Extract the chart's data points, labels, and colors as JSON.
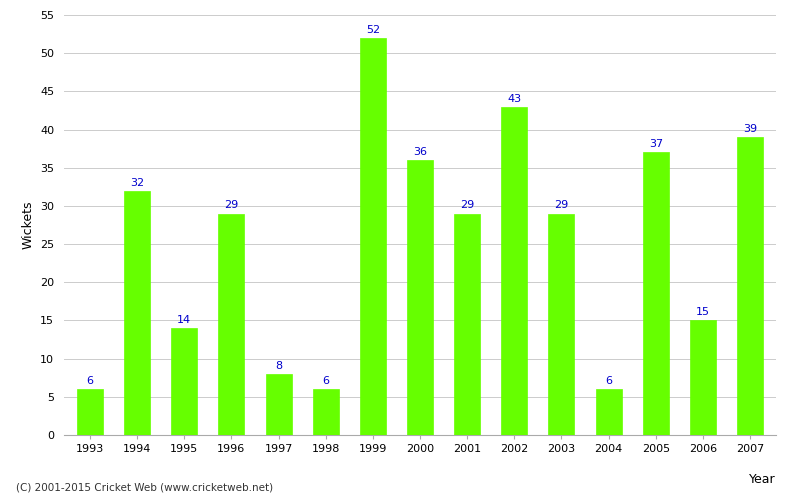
{
  "years": [
    1993,
    1994,
    1995,
    1996,
    1997,
    1998,
    1999,
    2000,
    2001,
    2002,
    2003,
    2004,
    2005,
    2006,
    2007
  ],
  "wickets": [
    6,
    32,
    14,
    29,
    8,
    6,
    52,
    36,
    29,
    43,
    29,
    6,
    37,
    15,
    39
  ],
  "bar_color": "#66ff00",
  "label_color": "#0000cc",
  "background_color": "#ffffff",
  "xlabel": "Year",
  "ylabel": "Wickets",
  "ylim": [
    0,
    55
  ],
  "yticks": [
    0,
    5,
    10,
    15,
    20,
    25,
    30,
    35,
    40,
    45,
    50,
    55
  ],
  "label_fontsize": 8,
  "axis_label_fontsize": 9,
  "tick_fontsize": 8,
  "footer": "(C) 2001-2015 Cricket Web (www.cricketweb.net)"
}
